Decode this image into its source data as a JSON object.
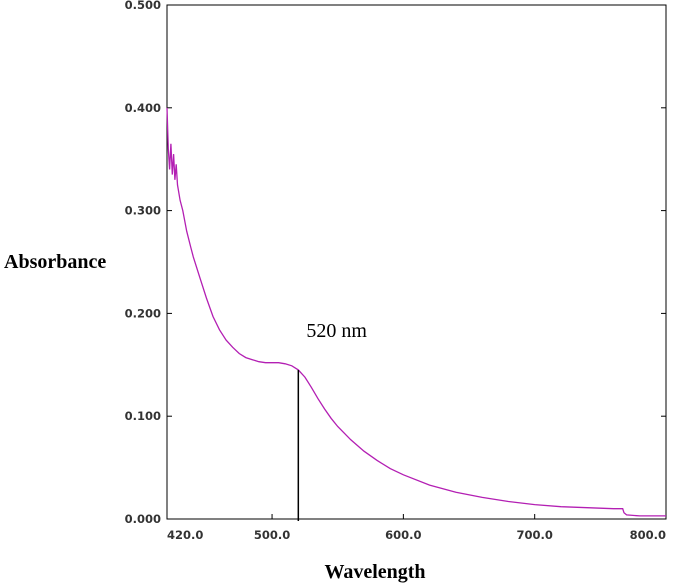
{
  "chart_data": {
    "type": "line",
    "title": "",
    "xlabel": "Wavelength",
    "ylabel": "Absorbance",
    "xlim": [
      420,
      800
    ],
    "ylim": [
      0,
      0.5
    ],
    "x_ticks": [
      "420.0",
      "500.0",
      "600.0",
      "700.0",
      "800.0"
    ],
    "x_tick_values": [
      420,
      500,
      600,
      700,
      800
    ],
    "y_ticks": [
      "0.000",
      "0.100",
      "0.200",
      "0.300",
      "0.400",
      "0.500"
    ],
    "y_tick_values": [
      0,
      0.1,
      0.2,
      0.3,
      0.4,
      0.5
    ],
    "grid": false,
    "legend": "none",
    "series": [
      {
        "color": "#b31fb3",
        "x": [
          420,
          421,
          422,
          423,
          424,
          425,
          426,
          427,
          428,
          430,
          432,
          435,
          438,
          440,
          445,
          450,
          455,
          460,
          465,
          470,
          475,
          480,
          485,
          490,
          495,
          500,
          505,
          510,
          515,
          520,
          525,
          530,
          535,
          540,
          545,
          550,
          560,
          570,
          580,
          590,
          600,
          620,
          640,
          660,
          680,
          700,
          720,
          740,
          760,
          765,
          767,
          768,
          770,
          780,
          790,
          800
        ],
        "y": [
          0.4,
          0.36,
          0.34,
          0.365,
          0.335,
          0.355,
          0.33,
          0.345,
          0.325,
          0.31,
          0.3,
          0.28,
          0.265,
          0.255,
          0.235,
          0.215,
          0.197,
          0.184,
          0.174,
          0.167,
          0.161,
          0.157,
          0.155,
          0.153,
          0.152,
          0.152,
          0.152,
          0.151,
          0.149,
          0.145,
          0.138,
          0.128,
          0.117,
          0.107,
          0.098,
          0.09,
          0.077,
          0.066,
          0.057,
          0.049,
          0.043,
          0.033,
          0.026,
          0.021,
          0.017,
          0.014,
          0.012,
          0.011,
          0.01,
          0.01,
          0.01,
          0.006,
          0.004,
          0.003,
          0.003,
          0.003
        ]
      }
    ],
    "annotations": [
      {
        "text": "520 nm",
        "x": 520,
        "y": 0.145
      }
    ]
  }
}
